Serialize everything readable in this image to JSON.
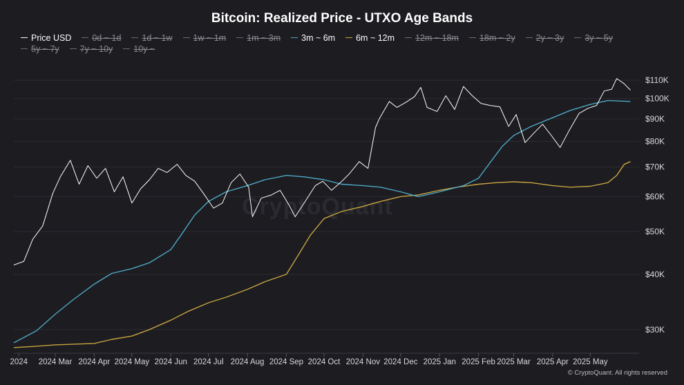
{
  "chart_data": {
    "type": "line",
    "title": "Bitcoin: Realized Price - UTXO Age Bands",
    "y_scale": "log",
    "ylim": [
      27000,
      120000
    ],
    "xlim": [
      "2024-01-28",
      "2025-06-05"
    ],
    "grid": "horizontal",
    "legend_placement": "top-left",
    "y_ticks": [
      {
        "value": 110000,
        "label": "$110K"
      },
      {
        "value": 100000,
        "label": "$100K"
      },
      {
        "value": 90000,
        "label": "$90K"
      },
      {
        "value": 80000,
        "label": "$80K"
      },
      {
        "value": 70000,
        "label": "$70K"
      },
      {
        "value": 60000,
        "label": "$60K"
      },
      {
        "value": 50000,
        "label": "$50K"
      },
      {
        "value": 40000,
        "label": "$40K"
      },
      {
        "value": 30000,
        "label": "$30K"
      }
    ],
    "x_ticks": [
      {
        "date": "2024-02-01",
        "label": "2024"
      },
      {
        "date": "2024-03-01",
        "label": "2024 Mar"
      },
      {
        "date": "2024-04-01",
        "label": "2024 Apr"
      },
      {
        "date": "2024-05-01",
        "label": "2024 May"
      },
      {
        "date": "2024-06-01",
        "label": "2024 Jun"
      },
      {
        "date": "2024-07-01",
        "label": "2024 Jul"
      },
      {
        "date": "2024-08-01",
        "label": "2024 Aug"
      },
      {
        "date": "2024-09-01",
        "label": "2024 Sep"
      },
      {
        "date": "2024-10-01",
        "label": "2024 Oct"
      },
      {
        "date": "2024-11-01",
        "label": "2024 Nov"
      },
      {
        "date": "2024-12-01",
        "label": "2024 Dec"
      },
      {
        "date": "2025-01-01",
        "label": "2025 Jan"
      },
      {
        "date": "2025-02-01",
        "label": "2025 Feb"
      },
      {
        "date": "2025-03-01",
        "label": "2025 Mar"
      },
      {
        "date": "2025-04-01",
        "label": "2025 Apr"
      },
      {
        "date": "2025-05-01",
        "label": "2025 May"
      }
    ],
    "legend": [
      {
        "name": "Price USD",
        "visible": true
      },
      {
        "name": "0d ~ 1d",
        "visible": false
      },
      {
        "name": "1d ~ 1w",
        "visible": false
      },
      {
        "name": "1w ~ 1m",
        "visible": false
      },
      {
        "name": "1m ~ 3m",
        "visible": false
      },
      {
        "name": "3m ~ 6m",
        "visible": true
      },
      {
        "name": "6m ~ 12m",
        "visible": true
      },
      {
        "name": "12m ~ 18m",
        "visible": false
      },
      {
        "name": "18m ~ 2y",
        "visible": false
      },
      {
        "name": "2y ~ 3y",
        "visible": false
      },
      {
        "name": "3y ~ 5y",
        "visible": false
      },
      {
        "name": "5y ~ 7y",
        "visible": false
      },
      {
        "name": "7y ~ 10y",
        "visible": false
      },
      {
        "name": "10y ~",
        "visible": false
      }
    ],
    "series": [
      {
        "name": "Price USD",
        "color": "#ffffff",
        "points": [
          [
            "2024-01-28",
            42000
          ],
          [
            "2024-02-05",
            42800
          ],
          [
            "2024-02-12",
            48000
          ],
          [
            "2024-02-20",
            51500
          ],
          [
            "2024-02-28",
            61000
          ],
          [
            "2024-03-05",
            66500
          ],
          [
            "2024-03-13",
            72500
          ],
          [
            "2024-03-20",
            64000
          ],
          [
            "2024-03-27",
            70500
          ],
          [
            "2024-04-03",
            66000
          ],
          [
            "2024-04-10",
            69500
          ],
          [
            "2024-04-17",
            61500
          ],
          [
            "2024-04-24",
            66500
          ],
          [
            "2024-05-01",
            58000
          ],
          [
            "2024-05-08",
            62500
          ],
          [
            "2024-05-15",
            65500
          ],
          [
            "2024-05-22",
            69500
          ],
          [
            "2024-05-29",
            68000
          ],
          [
            "2024-06-06",
            71000
          ],
          [
            "2024-06-13",
            67000
          ],
          [
            "2024-06-20",
            65000
          ],
          [
            "2024-06-27",
            61000
          ],
          [
            "2024-07-05",
            56500
          ],
          [
            "2024-07-12",
            58000
          ],
          [
            "2024-07-19",
            64500
          ],
          [
            "2024-07-26",
            67500
          ],
          [
            "2024-08-02",
            63000
          ],
          [
            "2024-08-05",
            54000
          ],
          [
            "2024-08-12",
            59500
          ],
          [
            "2024-08-20",
            60500
          ],
          [
            "2024-08-27",
            62000
          ],
          [
            "2024-09-03",
            57500
          ],
          [
            "2024-09-08",
            54000
          ],
          [
            "2024-09-16",
            58500
          ],
          [
            "2024-09-24",
            63500
          ],
          [
            "2024-09-30",
            65000
          ],
          [
            "2024-10-07",
            62000
          ],
          [
            "2024-10-14",
            64500
          ],
          [
            "2024-10-21",
            67500
          ],
          [
            "2024-10-29",
            72000
          ],
          [
            "2024-11-05",
            69500
          ],
          [
            "2024-11-11",
            86000
          ],
          [
            "2024-11-14",
            90000
          ],
          [
            "2024-11-22",
            98500
          ],
          [
            "2024-11-28",
            95500
          ],
          [
            "2024-12-05",
            98000
          ],
          [
            "2024-12-12",
            101000
          ],
          [
            "2024-12-17",
            106000
          ],
          [
            "2024-12-22",
            95500
          ],
          [
            "2024-12-30",
            93500
          ],
          [
            "2025-01-06",
            101500
          ],
          [
            "2025-01-13",
            94500
          ],
          [
            "2025-01-20",
            106500
          ],
          [
            "2025-01-27",
            101500
          ],
          [
            "2025-02-03",
            97500
          ],
          [
            "2025-02-10",
            96500
          ],
          [
            "2025-02-18",
            95800
          ],
          [
            "2025-02-25",
            86500
          ],
          [
            "2025-03-03",
            92000
          ],
          [
            "2025-03-10",
            79500
          ],
          [
            "2025-03-17",
            83500
          ],
          [
            "2025-03-24",
            87500
          ],
          [
            "2025-03-31",
            82500
          ],
          [
            "2025-04-07",
            77500
          ],
          [
            "2025-04-14",
            84500
          ],
          [
            "2025-04-22",
            92500
          ],
          [
            "2025-04-29",
            95000
          ],
          [
            "2025-05-06",
            96500
          ],
          [
            "2025-05-12",
            104000
          ],
          [
            "2025-05-18",
            105000
          ],
          [
            "2025-05-22",
            111000
          ],
          [
            "2025-05-28",
            108000
          ],
          [
            "2025-06-02",
            104500
          ]
        ]
      },
      {
        "name": "3m ~ 6m",
        "color": "#4fa8c4",
        "points": [
          [
            "2024-01-28",
            28000
          ],
          [
            "2024-02-15",
            29800
          ],
          [
            "2024-03-01",
            32500
          ],
          [
            "2024-03-15",
            35000
          ],
          [
            "2024-04-01",
            38000
          ],
          [
            "2024-04-15",
            40200
          ],
          [
            "2024-05-01",
            41200
          ],
          [
            "2024-05-15",
            42500
          ],
          [
            "2024-06-01",
            45500
          ],
          [
            "2024-06-10",
            49500
          ],
          [
            "2024-06-20",
            54500
          ],
          [
            "2024-07-01",
            58500
          ],
          [
            "2024-07-15",
            61500
          ],
          [
            "2024-08-01",
            63500
          ],
          [
            "2024-08-15",
            65500
          ],
          [
            "2024-09-01",
            67000
          ],
          [
            "2024-09-15",
            66500
          ],
          [
            "2024-10-01",
            65500
          ],
          [
            "2024-10-15",
            64000
          ],
          [
            "2024-11-01",
            63500
          ],
          [
            "2024-11-15",
            63000
          ],
          [
            "2024-12-01",
            61500
          ],
          [
            "2024-12-15",
            60000
          ],
          [
            "2025-01-01",
            61500
          ],
          [
            "2025-01-20",
            63500
          ],
          [
            "2025-02-01",
            66000
          ],
          [
            "2025-02-10",
            71500
          ],
          [
            "2025-02-20",
            78000
          ],
          [
            "2025-03-01",
            82500
          ],
          [
            "2025-03-15",
            86500
          ],
          [
            "2025-04-01",
            90500
          ],
          [
            "2025-04-15",
            94000
          ],
          [
            "2025-05-01",
            97000
          ],
          [
            "2025-05-15",
            99000
          ],
          [
            "2025-06-02",
            98500
          ]
        ]
      },
      {
        "name": "6m ~ 12m",
        "color": "#c8a440",
        "points": [
          [
            "2024-01-28",
            27300
          ],
          [
            "2024-02-15",
            27500
          ],
          [
            "2024-03-01",
            27700
          ],
          [
            "2024-04-01",
            27900
          ],
          [
            "2024-04-15",
            28500
          ],
          [
            "2024-05-01",
            29000
          ],
          [
            "2024-05-15",
            30000
          ],
          [
            "2024-06-01",
            31500
          ],
          [
            "2024-06-15",
            33000
          ],
          [
            "2024-07-01",
            34500
          ],
          [
            "2024-07-15",
            35500
          ],
          [
            "2024-08-01",
            37000
          ],
          [
            "2024-08-15",
            38500
          ],
          [
            "2024-09-01",
            40000
          ],
          [
            "2024-09-10",
            44000
          ],
          [
            "2024-09-20",
            49000
          ],
          [
            "2024-10-01",
            53500
          ],
          [
            "2024-10-15",
            55500
          ],
          [
            "2024-11-01",
            57000
          ],
          [
            "2024-11-15",
            58500
          ],
          [
            "2024-12-01",
            60000
          ],
          [
            "2024-12-15",
            60500
          ],
          [
            "2025-01-01",
            62000
          ],
          [
            "2025-01-15",
            63000
          ],
          [
            "2025-02-01",
            64000
          ],
          [
            "2025-02-15",
            64500
          ],
          [
            "2025-03-01",
            64800
          ],
          [
            "2025-03-15",
            64500
          ],
          [
            "2025-04-01",
            63500
          ],
          [
            "2025-04-15",
            63000
          ],
          [
            "2025-05-01",
            63300
          ],
          [
            "2025-05-15",
            64500
          ],
          [
            "2025-05-22",
            67000
          ],
          [
            "2025-05-28",
            71000
          ],
          [
            "2025-06-02",
            72000
          ]
        ]
      }
    ]
  },
  "copyright": "© CryptoQuant. All rights reserved",
  "watermark": "CryptoQuant"
}
